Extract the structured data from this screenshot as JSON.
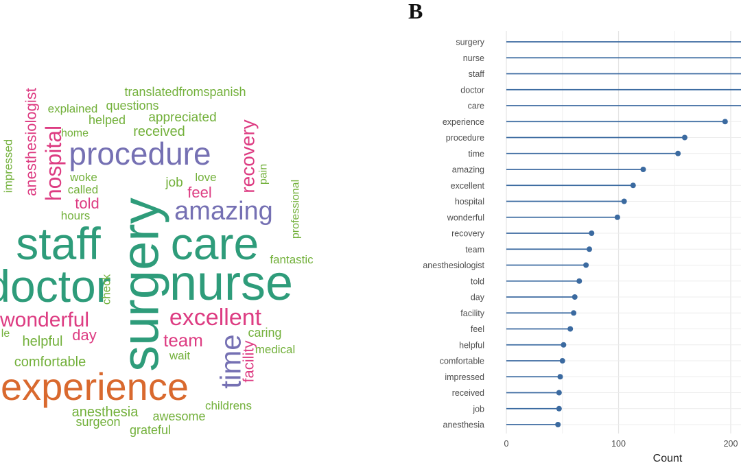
{
  "panel_b_label": "B",
  "chart_data": [
    {
      "type": "wordcloud",
      "words": [
        {
          "text": "surgery",
          "color": "#2e9c7a"
        },
        {
          "text": "staff",
          "color": "#2e9c7a"
        },
        {
          "text": "care",
          "color": "#2e9c7a"
        },
        {
          "text": "nurse",
          "color": "#2e9c7a"
        },
        {
          "text": "doctor",
          "color": "#2e9c7a"
        },
        {
          "text": "experience",
          "color": "#d9692e"
        },
        {
          "text": "procedure",
          "color": "#7570b3"
        },
        {
          "text": "amazing",
          "color": "#7570b3"
        },
        {
          "text": "time",
          "color": "#7570b3"
        },
        {
          "text": "hospital",
          "color": "#dd3c82"
        },
        {
          "text": "anesthesiologist",
          "color": "#dd3c82"
        },
        {
          "text": "recovery",
          "color": "#dd3c82"
        },
        {
          "text": "excellent",
          "color": "#dd3c82"
        },
        {
          "text": "wonderful",
          "color": "#dd3c82"
        },
        {
          "text": "team",
          "color": "#dd3c82"
        },
        {
          "text": "feel",
          "color": "#dd3c82"
        },
        {
          "text": "told",
          "color": "#dd3c82"
        },
        {
          "text": "facility",
          "color": "#dd3c82"
        },
        {
          "text": "day",
          "color": "#dd3c82"
        },
        {
          "text": "translatedfromspanish",
          "color": "#72b03a"
        },
        {
          "text": "explained",
          "color": "#72b03a"
        },
        {
          "text": "questions",
          "color": "#72b03a"
        },
        {
          "text": "helped",
          "color": "#72b03a"
        },
        {
          "text": "appreciated",
          "color": "#72b03a"
        },
        {
          "text": "home",
          "color": "#72b03a"
        },
        {
          "text": "received",
          "color": "#72b03a"
        },
        {
          "text": "impressed",
          "color": "#72b03a"
        },
        {
          "text": "woke",
          "color": "#72b03a"
        },
        {
          "text": "called",
          "color": "#72b03a"
        },
        {
          "text": "hours",
          "color": "#72b03a"
        },
        {
          "text": "job",
          "color": "#72b03a"
        },
        {
          "text": "love",
          "color": "#72b03a"
        },
        {
          "text": "pain",
          "color": "#72b03a"
        },
        {
          "text": "professional",
          "color": "#72b03a"
        },
        {
          "text": "fantastic",
          "color": "#72b03a"
        },
        {
          "text": "check",
          "color": "#72b03a"
        },
        {
          "text": "helpful",
          "color": "#72b03a"
        },
        {
          "text": "comfortable",
          "color": "#72b03a"
        },
        {
          "text": "caring",
          "color": "#72b03a"
        },
        {
          "text": "medical",
          "color": "#72b03a"
        },
        {
          "text": "wait",
          "color": "#72b03a"
        },
        {
          "text": "anesthesia",
          "color": "#72b03a"
        },
        {
          "text": "surgeon",
          "color": "#72b03a"
        },
        {
          "text": "grateful",
          "color": "#72b03a"
        },
        {
          "text": "awesome",
          "color": "#72b03a"
        },
        {
          "text": "childrens",
          "color": "#72b03a"
        },
        {
          "text": "le",
          "color": "#72b03a"
        }
      ]
    },
    {
      "type": "lollipop",
      "orientation": "horizontal",
      "xlabel": "Count",
      "xticks": [
        0,
        100,
        200
      ],
      "xlim": [
        0,
        210
      ],
      "grid": true,
      "color": "#3b6aa0",
      "categories": [
        "surgery",
        "nurse",
        "staff",
        "doctor",
        "care",
        "experience",
        "procedure",
        "time",
        "amazing",
        "excellent",
        "hospital",
        "wonderful",
        "recovery",
        "team",
        "anesthesiologist",
        "told",
        "day",
        "facility",
        "feel",
        "helpful",
        "comfortable",
        "impressed",
        "received",
        "job",
        "anesthesia"
      ],
      "values": [
        230,
        225,
        222,
        218,
        215,
        195,
        159,
        153,
        122,
        113,
        105,
        99,
        76,
        74,
        71,
        65,
        61,
        60,
        57,
        51,
        50,
        48,
        47,
        47,
        46
      ]
    }
  ]
}
